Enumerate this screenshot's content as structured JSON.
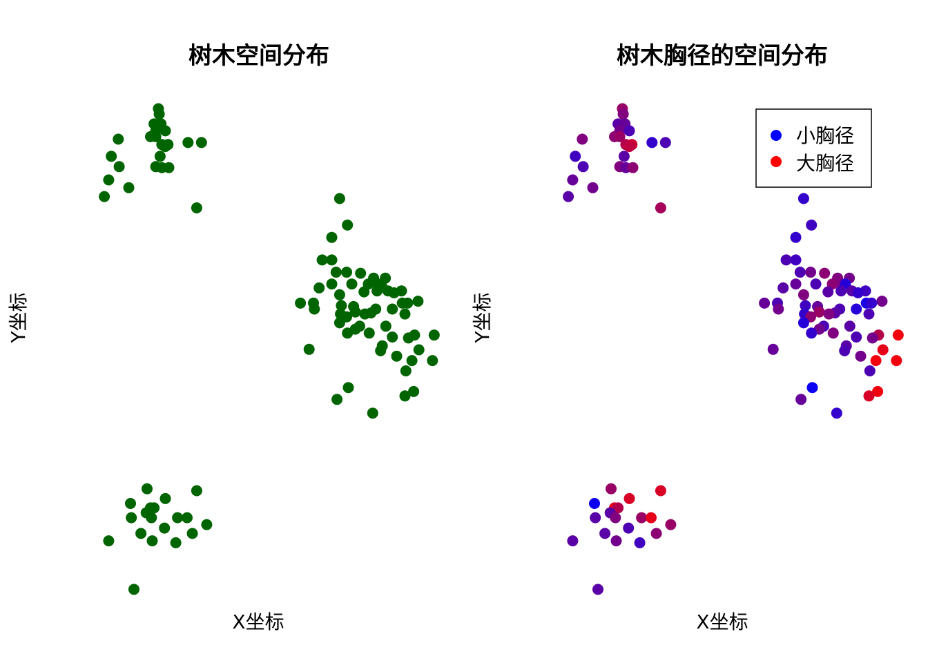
{
  "chart_data": [
    {
      "type": "scatter",
      "title": "树木空间分布",
      "xlabel": "X坐标",
      "ylabel": "Y坐标",
      "xlim": [
        0,
        100
      ],
      "ylim": [
        0,
        100
      ],
      "axes_visible": false,
      "grid": false,
      "point_color": "#006400",
      "points": [
        [
          27.0,
          93.9
        ],
        [
          27.2,
          92.8
        ],
        [
          26.0,
          90.8
        ],
        [
          27.6,
          90.8
        ],
        [
          26.4,
          89.4
        ],
        [
          28.6,
          89.4
        ],
        [
          25.2,
          88.2
        ],
        [
          26.4,
          88.2
        ],
        [
          17.8,
          87.7
        ],
        [
          33.8,
          87.0
        ],
        [
          36.9,
          87.0
        ],
        [
          27.8,
          86.6
        ],
        [
          29.2,
          86.6
        ],
        [
          28.6,
          86.2
        ],
        [
          16.2,
          84.2
        ],
        [
          27.4,
          84.2
        ],
        [
          18.0,
          82.1
        ],
        [
          26.4,
          82.1
        ],
        [
          27.8,
          81.9
        ],
        [
          29.4,
          81.9
        ],
        [
          15.6,
          79.4
        ],
        [
          20.2,
          77.8
        ],
        [
          35.8,
          73.7
        ],
        [
          14.6,
          76.0
        ],
        [
          68.6,
          75.6
        ],
        [
          70.4,
          70.2
        ],
        [
          66.8,
          67.7
        ],
        [
          64.6,
          63.1
        ],
        [
          66.8,
          63.1
        ],
        [
          67.8,
          60.6
        ],
        [
          70.2,
          60.6
        ],
        [
          73.4,
          60.4
        ],
        [
          76.4,
          59.4
        ],
        [
          79.1,
          59.4
        ],
        [
          66.8,
          58.2
        ],
        [
          71.4,
          58.2
        ],
        [
          75.2,
          58.2
        ],
        [
          77.4,
          58.2
        ],
        [
          78.2,
          58.2
        ],
        [
          63.9,
          57.4
        ],
        [
          77.2,
          56.8
        ],
        [
          79.7,
          56.8
        ],
        [
          82.8,
          56.8
        ],
        [
          74.2,
          56.6
        ],
        [
          81.1,
          56.4
        ],
        [
          68.6,
          56.0
        ],
        [
          86.6,
          54.7
        ],
        [
          59.6,
          54.3
        ],
        [
          62.6,
          54.3
        ],
        [
          83.0,
          54.3
        ],
        [
          84.2,
          54.3
        ],
        [
          69.0,
          53.8
        ],
        [
          71.8,
          53.6
        ],
        [
          62.8,
          53.1
        ],
        [
          76.9,
          53.1
        ],
        [
          80.7,
          53.1
        ],
        [
          72.2,
          52.5
        ],
        [
          75.8,
          52.3
        ],
        [
          68.8,
          52.1
        ],
        [
          74.4,
          52.1
        ],
        [
          83.6,
          52.1
        ],
        [
          70.2,
          51.5
        ],
        [
          68.6,
          50.3
        ],
        [
          73.2,
          49.6
        ],
        [
          79.2,
          49.6
        ],
        [
          72.2,
          49.0
        ],
        [
          70.4,
          48.2
        ],
        [
          75.4,
          48.2
        ],
        [
          85.8,
          47.8
        ],
        [
          80.7,
          47.4
        ],
        [
          84.4,
          47.2
        ],
        [
          90.3,
          47.8
        ],
        [
          78.4,
          45.6
        ],
        [
          61.6,
          44.9
        ],
        [
          78.0,
          44.6
        ],
        [
          86.8,
          44.8
        ],
        [
          81.7,
          43.5
        ],
        [
          85.2,
          42.6
        ],
        [
          89.9,
          42.6
        ],
        [
          83.8,
          40.5
        ],
        [
          70.6,
          37.1
        ],
        [
          85.6,
          36.3
        ],
        [
          83.6,
          35.4
        ],
        [
          68.0,
          34.7
        ],
        [
          76.2,
          31.9
        ],
        [
          24.4,
          16.5
        ],
        [
          35.8,
          16.1
        ],
        [
          28.6,
          14.5
        ],
        [
          20.6,
          13.5
        ],
        [
          25.2,
          12.6
        ],
        [
          26.0,
          12.6
        ],
        [
          24.2,
          11.6
        ],
        [
          20.8,
          10.6
        ],
        [
          25.4,
          10.6
        ],
        [
          31.4,
          10.6
        ],
        [
          33.6,
          10.6
        ],
        [
          28.4,
          8.5
        ],
        [
          38.1,
          9.2
        ],
        [
          23.0,
          7.4
        ],
        [
          34.8,
          7.4
        ],
        [
          15.6,
          5.9
        ],
        [
          25.6,
          5.9
        ],
        [
          31.0,
          5.5
        ],
        [
          21.4,
          -4.0
        ]
      ]
    },
    {
      "type": "scatter",
      "title": "树木胸径的空间分布",
      "xlabel": "X坐标",
      "ylabel": "Y坐标",
      "xlim": [
        0,
        100
      ],
      "ylim": [
        0,
        100
      ],
      "axes_visible": false,
      "grid": false,
      "color_scale": {
        "low": "#0000FF",
        "high": "#FF0000"
      },
      "legend": {
        "position": "top-right",
        "entries": [
          {
            "label": "小胸径",
            "color": "#0000FF"
          },
          {
            "label": "大胸径",
            "color": "#FF0000"
          }
        ]
      },
      "points": [
        [
          27.0,
          93.9,
          0.6
        ],
        [
          27.2,
          92.8,
          0.5
        ],
        [
          26.0,
          90.8,
          0.35
        ],
        [
          27.6,
          90.8,
          0.4
        ],
        [
          26.4,
          89.4,
          0.45
        ],
        [
          28.6,
          89.4,
          0.3
        ],
        [
          25.2,
          88.2,
          0.55
        ],
        [
          26.4,
          88.2,
          0.6
        ],
        [
          17.8,
          87.7,
          0.5
        ],
        [
          33.8,
          87.0,
          0.2
        ],
        [
          36.9,
          87.0,
          0.3
        ],
        [
          27.8,
          86.6,
          0.7
        ],
        [
          29.2,
          86.6,
          0.8
        ],
        [
          28.6,
          86.2,
          0.75
        ],
        [
          16.2,
          84.2,
          0.25
        ],
        [
          27.4,
          84.2,
          0.35
        ],
        [
          18.0,
          82.1,
          0.3
        ],
        [
          26.4,
          82.1,
          0.5
        ],
        [
          27.8,
          81.9,
          0.4
        ],
        [
          29.4,
          81.9,
          0.55
        ],
        [
          15.6,
          79.4,
          0.4
        ],
        [
          20.2,
          77.8,
          0.45
        ],
        [
          35.8,
          73.7,
          0.65
        ],
        [
          14.6,
          76.0,
          0.35
        ],
        [
          68.6,
          75.6,
          0.2
        ],
        [
          70.4,
          70.2,
          0.25
        ],
        [
          66.8,
          67.7,
          0.2
        ],
        [
          64.6,
          63.1,
          0.3
        ],
        [
          66.8,
          63.1,
          0.25
        ],
        [
          67.8,
          60.6,
          0.3
        ],
        [
          70.2,
          60.6,
          0.45
        ],
        [
          73.4,
          60.4,
          0.55
        ],
        [
          76.4,
          59.4,
          0.5
        ],
        [
          79.1,
          59.4,
          0.45
        ],
        [
          66.8,
          58.2,
          0.4
        ],
        [
          71.4,
          58.2,
          0.3
        ],
        [
          75.2,
          58.2,
          0.55
        ],
        [
          77.4,
          58.2,
          0.5
        ],
        [
          78.2,
          58.2,
          0.15
        ],
        [
          63.9,
          57.4,
          0.35
        ],
        [
          77.2,
          56.8,
          0.3
        ],
        [
          79.7,
          56.8,
          0.35
        ],
        [
          82.8,
          56.8,
          0.25
        ],
        [
          74.2,
          56.6,
          0.35
        ],
        [
          81.1,
          56.4,
          0.2
        ],
        [
          68.6,
          56.0,
          0.5
        ],
        [
          86.6,
          54.7,
          0.45
        ],
        [
          59.6,
          54.3,
          0.4
        ],
        [
          62.6,
          54.3,
          0.3
        ],
        [
          83.0,
          54.3,
          0.1
        ],
        [
          84.2,
          54.3,
          0.2
        ],
        [
          69.0,
          53.8,
          0.25
        ],
        [
          71.8,
          53.6,
          0.4
        ],
        [
          62.8,
          53.1,
          0.45
        ],
        [
          76.9,
          53.1,
          0.3
        ],
        [
          80.7,
          53.1,
          0.15
        ],
        [
          72.2,
          52.5,
          0.6
        ],
        [
          75.8,
          52.3,
          0.35
        ],
        [
          68.8,
          52.1,
          0.2
        ],
        [
          74.4,
          52.1,
          0.5
        ],
        [
          83.6,
          52.1,
          0.3
        ],
        [
          70.2,
          51.5,
          0.55
        ],
        [
          68.6,
          50.3,
          0.15
        ],
        [
          73.2,
          49.6,
          0.3
        ],
        [
          79.2,
          49.6,
          0.35
        ],
        [
          72.2,
          49.0,
          0.45
        ],
        [
          70.4,
          48.2,
          0.2
        ],
        [
          75.4,
          48.2,
          0.5
        ],
        [
          85.8,
          47.8,
          0.7
        ],
        [
          80.7,
          47.4,
          0.3
        ],
        [
          84.4,
          47.2,
          0.45
        ],
        [
          90.3,
          47.8,
          0.95
        ],
        [
          78.4,
          45.6,
          0.35
        ],
        [
          61.6,
          44.9,
          0.4
        ],
        [
          78.0,
          44.6,
          0.3
        ],
        [
          86.8,
          44.8,
          0.9
        ],
        [
          81.7,
          43.5,
          0.45
        ],
        [
          85.2,
          42.6,
          0.95
        ],
        [
          89.9,
          42.6,
          0.95
        ],
        [
          83.8,
          40.5,
          0.3
        ],
        [
          70.6,
          37.1,
          0.05
        ],
        [
          85.6,
          36.3,
          0.95
        ],
        [
          83.6,
          35.4,
          0.85
        ],
        [
          68.0,
          34.7,
          0.4
        ],
        [
          76.2,
          31.9,
          0.2
        ],
        [
          24.4,
          16.5,
          0.6
        ],
        [
          35.8,
          16.1,
          0.85
        ],
        [
          28.6,
          14.5,
          0.85
        ],
        [
          20.6,
          13.5,
          0.05
        ],
        [
          25.2,
          12.6,
          0.9
        ],
        [
          26.0,
          12.6,
          0.7
        ],
        [
          24.2,
          11.6,
          0.35
        ],
        [
          20.8,
          10.6,
          0.35
        ],
        [
          25.4,
          10.6,
          0.5
        ],
        [
          31.4,
          10.6,
          0.6
        ],
        [
          33.6,
          10.6,
          0.9
        ],
        [
          28.4,
          8.5,
          0.3
        ],
        [
          38.1,
          9.2,
          0.6
        ],
        [
          23.0,
          7.4,
          0.35
        ],
        [
          34.8,
          7.4,
          0.55
        ],
        [
          15.6,
          5.9,
          0.35
        ],
        [
          25.6,
          5.9,
          0.45
        ],
        [
          31.0,
          5.5,
          0.25
        ],
        [
          21.4,
          -4.0,
          0.35
        ]
      ]
    }
  ]
}
